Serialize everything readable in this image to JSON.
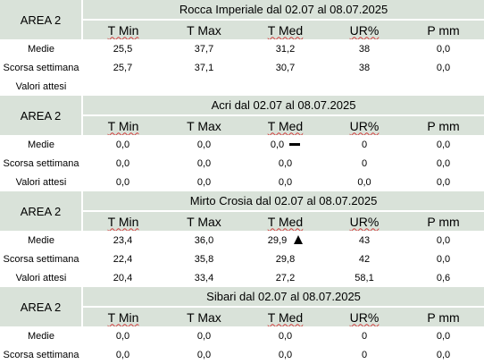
{
  "sections": [
    {
      "area": "AREA 2",
      "title": "Rocca Imperiale  dal 02.07 al 08.07.2025",
      "headers": [
        "T Min",
        "T Max",
        "T Med",
        "UR%",
        "P mm"
      ],
      "rows": [
        {
          "label": "Medie",
          "values": [
            "25,5",
            "37,7",
            "31,2",
            "38",
            "0,0"
          ],
          "indicator": ""
        },
        {
          "label": "Scorsa settimana",
          "values": [
            "25,7",
            "37,1",
            "30,7",
            "38",
            "0,0"
          ],
          "indicator": ""
        },
        {
          "label": "Valori attesi",
          "values": [
            "",
            "",
            "",
            "",
            ""
          ],
          "indicator": ""
        }
      ]
    },
    {
      "area": "AREA 2",
      "title": "Acri dal 02.07 al 08.07.2025",
      "headers": [
        "T Min",
        "T Max",
        "T Med",
        "UR%",
        "P mm"
      ],
      "rows": [
        {
          "label": "Medie",
          "values": [
            "0,0",
            "0,0",
            "0,0",
            "0",
            "0,0"
          ],
          "indicator": "dash"
        },
        {
          "label": "Scorsa settimana",
          "values": [
            "0,0",
            "0,0",
            "0,0",
            "0",
            "0,0"
          ],
          "indicator": ""
        },
        {
          "label": "Valori attesi",
          "values": [
            "0,0",
            "0,0",
            "0,0",
            "0,0",
            "0,0"
          ],
          "indicator": ""
        }
      ]
    },
    {
      "area": "AREA 2",
      "title": "Mirto Crosia dal 02.07 al 08.07.2025",
      "headers": [
        "T Min",
        "T Max",
        "T Med",
        "UR%",
        "P mm"
      ],
      "rows": [
        {
          "label": "Medie",
          "values": [
            "23,4",
            "36,0",
            "29,9",
            "43",
            "0,0"
          ],
          "indicator": "up"
        },
        {
          "label": "Scorsa settimana",
          "values": [
            "22,4",
            "35,8",
            "29,8",
            "42",
            "0,0"
          ],
          "indicator": ""
        },
        {
          "label": "Valori attesi",
          "values": [
            "20,4",
            "33,4",
            "27,2",
            "58,1",
            "0,6"
          ],
          "indicator": ""
        }
      ]
    },
    {
      "area": "AREA 2",
      "title": "Sibari dal 02.07 al 08.07.2025",
      "headers": [
        "T Min",
        "T Max",
        "T Med",
        "UR%",
        "P mm"
      ],
      "rows": [
        {
          "label": "Medie",
          "values": [
            "0,0",
            "0,0",
            "0,0",
            "0",
            "0,0"
          ],
          "indicator": ""
        },
        {
          "label": "Scorsa settimana",
          "values": [
            "0,0",
            "0,0",
            "0,0",
            "0",
            "0,0"
          ],
          "indicator": ""
        }
      ]
    }
  ]
}
